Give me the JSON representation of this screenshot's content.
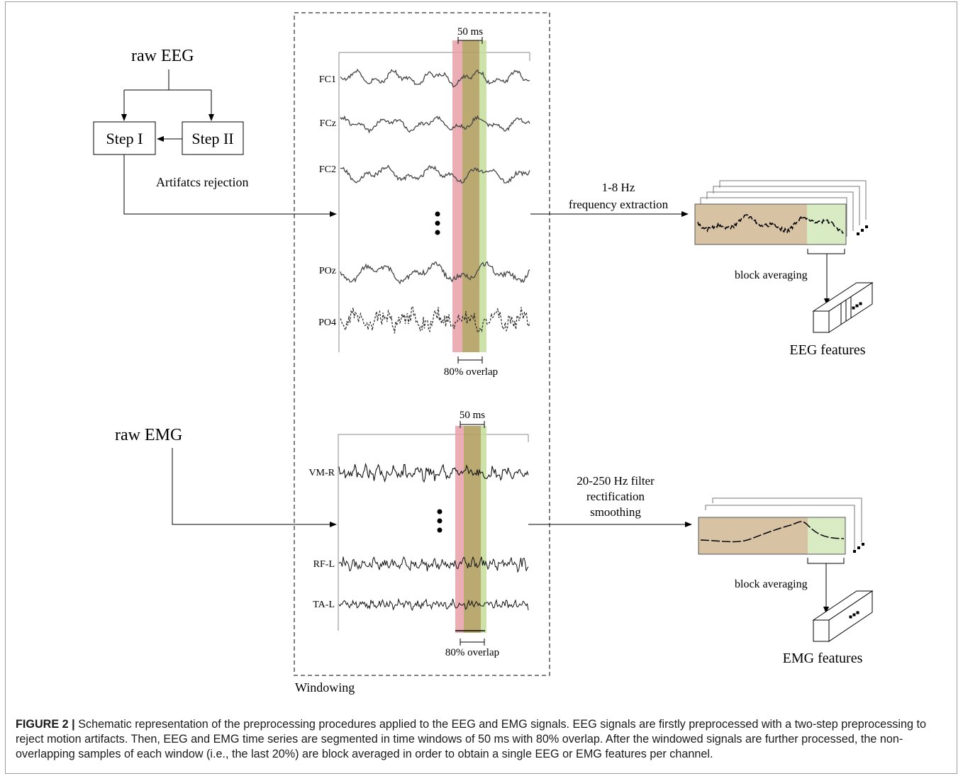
{
  "colors": {
    "red_window": "#e8a0a8",
    "green_window": "#c6dfa0",
    "overlap": "#b3a062",
    "feature_fill": "#d7c2a4",
    "feature_green": "#d9ebc3",
    "frame": "#9c9c9c"
  },
  "eeg_path": {
    "raw_label": "raw EEG",
    "step1_label": "Step I",
    "step2_label": "Step II",
    "artifact_label": "Artifatcs rejection",
    "extract_line1": "1-8 Hz",
    "extract_line2": "frequency extraction",
    "block_avg_label": "block averaging",
    "features_label": "EEG features"
  },
  "eeg_panel": {
    "window_label": "50 ms",
    "overlap_label": "80% overlap",
    "channels": [
      "FC1",
      "FCz",
      "FC2",
      "POz",
      "PO4"
    ]
  },
  "emg_path": {
    "raw_label": "raw EMG",
    "process_line1": "20-250 Hz filter",
    "process_line2": "rectification",
    "process_line3": "smoothing",
    "block_avg_label": "block averaging",
    "features_label": "EMG features"
  },
  "emg_panel": {
    "window_label": "50 ms",
    "overlap_label": "80% overlap",
    "channels": [
      "VM-R",
      "RF-L",
      "TA-L"
    ]
  },
  "windowing_label": "Windowing",
  "caption": {
    "label": "FIGURE 2 |",
    "text": "Schematic representation of the preprocessing procedures applied to the EEG and EMG signals. EEG signals are firstly preprocessed with a two-step preprocessing to reject motion artifacts. Then, EEG and EMG time series are segmented in time windows of 50 ms with 80% overlap. After the windowed signals are further processed, the non-overlapping samples of each window (i.e., the last 20%) are block averaged in order to obtain a single EEG or EMG features per channel."
  }
}
